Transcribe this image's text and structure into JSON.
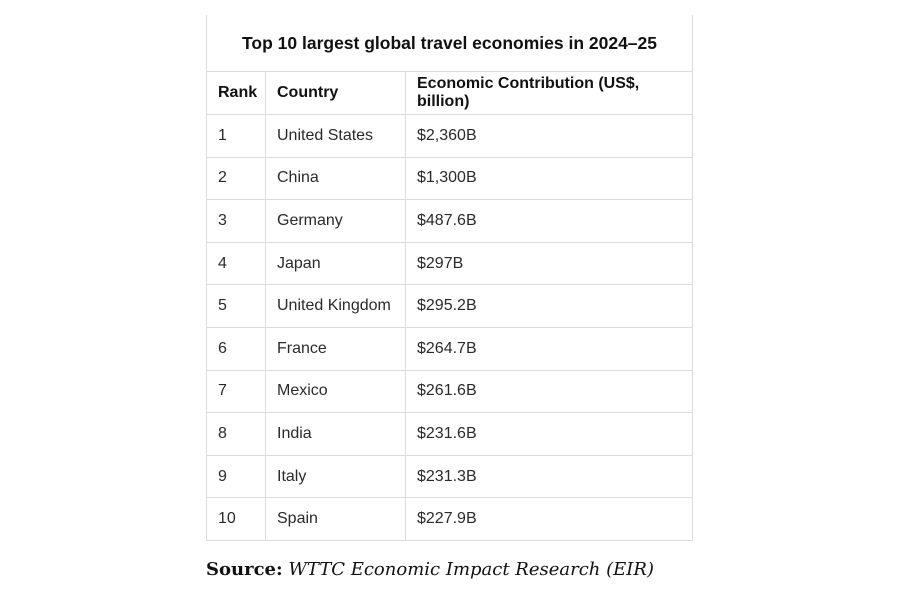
{
  "table": {
    "title": "Top 10 largest global travel economies in 2024–25",
    "headers": {
      "rank": "Rank",
      "country": "Country",
      "value": "Economic Contribution (US$, billion)"
    },
    "rows": [
      {
        "rank": "1",
        "country": "United States",
        "value": "$2,360B"
      },
      {
        "rank": "2",
        "country": "China",
        "value": "$1,300B"
      },
      {
        "rank": "3",
        "country": "Germany",
        "value": "$487.6B"
      },
      {
        "rank": "4",
        "country": "Japan",
        "value": "$297B"
      },
      {
        "rank": "5",
        "country": "United Kingdom",
        "value": "$295.2B"
      },
      {
        "rank": "6",
        "country": "France",
        "value": "$264.7B"
      },
      {
        "rank": "7",
        "country": "Mexico",
        "value": "$261.6B"
      },
      {
        "rank": "8",
        "country": "India",
        "value": "$231.6B"
      },
      {
        "rank": "9",
        "country": "Italy",
        "value": "$231.3B"
      },
      {
        "rank": "10",
        "country": "Spain",
        "value": "$227.9B"
      }
    ]
  },
  "source": {
    "label": "Source:",
    "text": "WTTC Economic Impact Research (EIR)"
  },
  "colors": {
    "border": "#dcdcdc",
    "text": "#2a2a2a",
    "heading": "#111111",
    "background": "#ffffff"
  }
}
